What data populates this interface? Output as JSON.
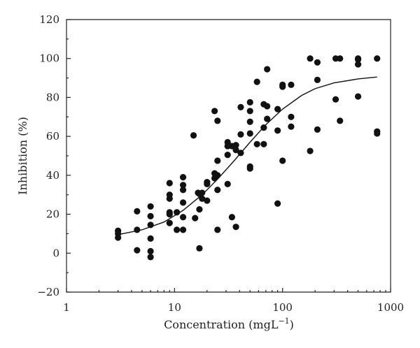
{
  "chart_data": {
    "type": "scatter",
    "xlabel": "Concentration (mgL",
    "xlabel_sup": "−1",
    "xlabel_close": ")",
    "ylabel": "Inhibition (%)",
    "xscale": "log",
    "xlim": [
      1,
      1000
    ],
    "ylim": [
      -20,
      120
    ],
    "x_ticks": [
      1,
      10,
      100,
      1000
    ],
    "x_tick_labels": [
      "1",
      "10",
      "100",
      "1000"
    ],
    "y_ticks": [
      -20,
      0,
      20,
      40,
      60,
      80,
      100,
      120
    ],
    "y_tick_labels": [
      "−20",
      "0",
      "20",
      "40",
      "60",
      "80",
      "100",
      "120"
    ],
    "grid": false,
    "legend": "none",
    "series": [
      {
        "kind": "scatter",
        "points": [
          [
            3,
            11.5
          ],
          [
            3,
            10
          ],
          [
            3,
            8
          ],
          [
            4.5,
            21.5
          ],
          [
            4.5,
            12
          ],
          [
            4.5,
            1.5
          ],
          [
            6,
            24
          ],
          [
            6,
            19
          ],
          [
            6,
            14.5
          ],
          [
            6,
            7.5
          ],
          [
            6,
            1
          ],
          [
            6,
            -2
          ],
          [
            9,
            36
          ],
          [
            9,
            30
          ],
          [
            9,
            28
          ],
          [
            9,
            21
          ],
          [
            9,
            20
          ],
          [
            9,
            15.5
          ],
          [
            10.5,
            21
          ],
          [
            10.5,
            12
          ],
          [
            12,
            39
          ],
          [
            12,
            35
          ],
          [
            12,
            32.5
          ],
          [
            12,
            26
          ],
          [
            12,
            18.5
          ],
          [
            12,
            12
          ],
          [
            15,
            60.5
          ],
          [
            15.5,
            18
          ],
          [
            16.5,
            31
          ],
          [
            17,
            30.5
          ],
          [
            17,
            2.5
          ],
          [
            17,
            22.5
          ],
          [
            18,
            28
          ],
          [
            18,
            31
          ],
          [
            20,
            36.5
          ],
          [
            20,
            35.5
          ],
          [
            20,
            27
          ],
          [
            23.5,
            73
          ],
          [
            23.5,
            41
          ],
          [
            23.5,
            38.5
          ],
          [
            25,
            68
          ],
          [
            25,
            47.5
          ],
          [
            25,
            40
          ],
          [
            25,
            32.5
          ],
          [
            25,
            12
          ],
          [
            31,
            57
          ],
          [
            31,
            55
          ],
          [
            31,
            50.5
          ],
          [
            31,
            35.5
          ],
          [
            34,
            55
          ],
          [
            34,
            18.5
          ],
          [
            37,
            55.5
          ],
          [
            37,
            53
          ],
          [
            37,
            13.5
          ],
          [
            41,
            75
          ],
          [
            41,
            61
          ],
          [
            41,
            51.5
          ],
          [
            50,
            77.5
          ],
          [
            50,
            73
          ],
          [
            50,
            67.5
          ],
          [
            50,
            61.5
          ],
          [
            50,
            44.5
          ],
          [
            50,
            43.5
          ],
          [
            58,
            88
          ],
          [
            58,
            56
          ],
          [
            67,
            76.5
          ],
          [
            67,
            64.5
          ],
          [
            67,
            56
          ],
          [
            72,
            94.5
          ],
          [
            72,
            75.5
          ],
          [
            72,
            69
          ],
          [
            90,
            74
          ],
          [
            90,
            63
          ],
          [
            90,
            25.5
          ],
          [
            100,
            86.5
          ],
          [
            100,
            85.5
          ],
          [
            100,
            47.5
          ],
          [
            120,
            86.5
          ],
          [
            120,
            70
          ],
          [
            120,
            65
          ],
          [
            180,
            100
          ],
          [
            180,
            52.5
          ],
          [
            210,
            98
          ],
          [
            210,
            89
          ],
          [
            210,
            63.5
          ],
          [
            310,
            100
          ],
          [
            310,
            79
          ],
          [
            340,
            100
          ],
          [
            340,
            68
          ],
          [
            500,
            100
          ],
          [
            500,
            99.5
          ],
          [
            500,
            97
          ],
          [
            500,
            80.5
          ],
          [
            750,
            100
          ],
          [
            750,
            62.5
          ],
          [
            750,
            61.5
          ]
        ]
      },
      {
        "kind": "line",
        "points": [
          [
            3,
            9.5
          ],
          [
            5,
            12
          ],
          [
            8,
            16
          ],
          [
            12,
            22
          ],
          [
            18,
            30
          ],
          [
            25,
            38
          ],
          [
            35,
            47
          ],
          [
            50,
            57
          ],
          [
            70,
            66
          ],
          [
            100,
            74
          ],
          [
            150,
            81
          ],
          [
            200,
            84.5
          ],
          [
            300,
            87.5
          ],
          [
            500,
            89.5
          ],
          [
            750,
            90.5
          ]
        ]
      }
    ]
  }
}
